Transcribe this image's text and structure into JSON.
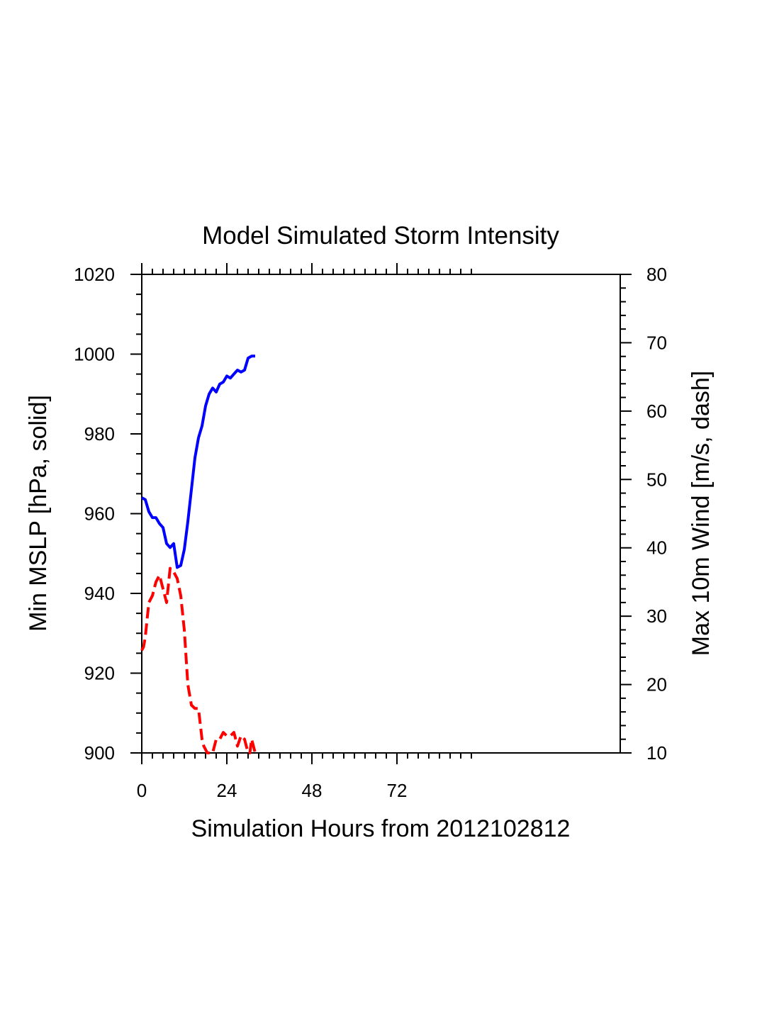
{
  "chart_data": {
    "type": "line",
    "title": "Model Simulated Storm Intensity",
    "xlabel": "Simulation Hours from 2012102812",
    "ylabel_left": "Min MSLP  [hPa, solid]",
    "ylabel_right": "Max 10m Wind  [m/s, dash]",
    "xlim": [
      0,
      135
    ],
    "x_ticks": [
      0,
      24,
      48,
      72
    ],
    "x_tick_labels": [
      "0",
      "24",
      "48",
      "72"
    ],
    "ylim_left": [
      900,
      1020
    ],
    "y_ticks_left": [
      "900",
      "920",
      "940",
      "960",
      "980",
      "1000",
      "1020"
    ],
    "ylim_right": [
      10,
      80
    ],
    "y_ticks_right": [
      "10",
      "20",
      "30",
      "40",
      "50",
      "60",
      "70",
      "80"
    ],
    "grid": false,
    "series": [
      {
        "axis": "left",
        "style": "solid",
        "color": "#0000ff",
        "x": [
          0,
          1,
          2,
          3,
          4,
          5,
          6,
          7,
          8,
          9,
          10,
          11,
          12,
          13,
          14,
          15,
          16,
          17,
          18,
          19,
          20,
          21,
          22,
          23,
          24,
          25,
          26,
          27,
          28,
          29,
          30,
          31,
          32
        ],
        "values": [
          964,
          963.5,
          960.5,
          959,
          959,
          957.5,
          956.5,
          952.5,
          951.5,
          952.5,
          946.5,
          947,
          951,
          958,
          966,
          974,
          979,
          982,
          987,
          990,
          991.5,
          990.5,
          992.5,
          993,
          994.5,
          994,
          995,
          996,
          995.5,
          996,
          999,
          999.5,
          999.5
        ]
      },
      {
        "axis": "right",
        "style": "dash",
        "color": "#ff0000",
        "x": [
          0,
          0.5,
          1,
          2,
          3,
          4,
          5,
          6,
          7,
          8,
          9,
          10,
          11,
          12,
          13,
          14,
          15,
          16,
          17,
          17.5,
          18,
          18.5,
          19,
          20,
          21,
          22,
          23,
          24,
          25,
          26,
          27,
          28,
          29,
          30,
          30.5,
          31,
          32
        ],
        "values": [
          25,
          25.5,
          27,
          32,
          33,
          35,
          36,
          34,
          32,
          37,
          36.5,
          35.5,
          33,
          28,
          20,
          17,
          16.5,
          16.5,
          12,
          11,
          10.5,
          10,
          10,
          10,
          12,
          12,
          13,
          12.5,
          12.5,
          13,
          11,
          12.5,
          12,
          10,
          10,
          12,
          10
        ]
      }
    ]
  }
}
